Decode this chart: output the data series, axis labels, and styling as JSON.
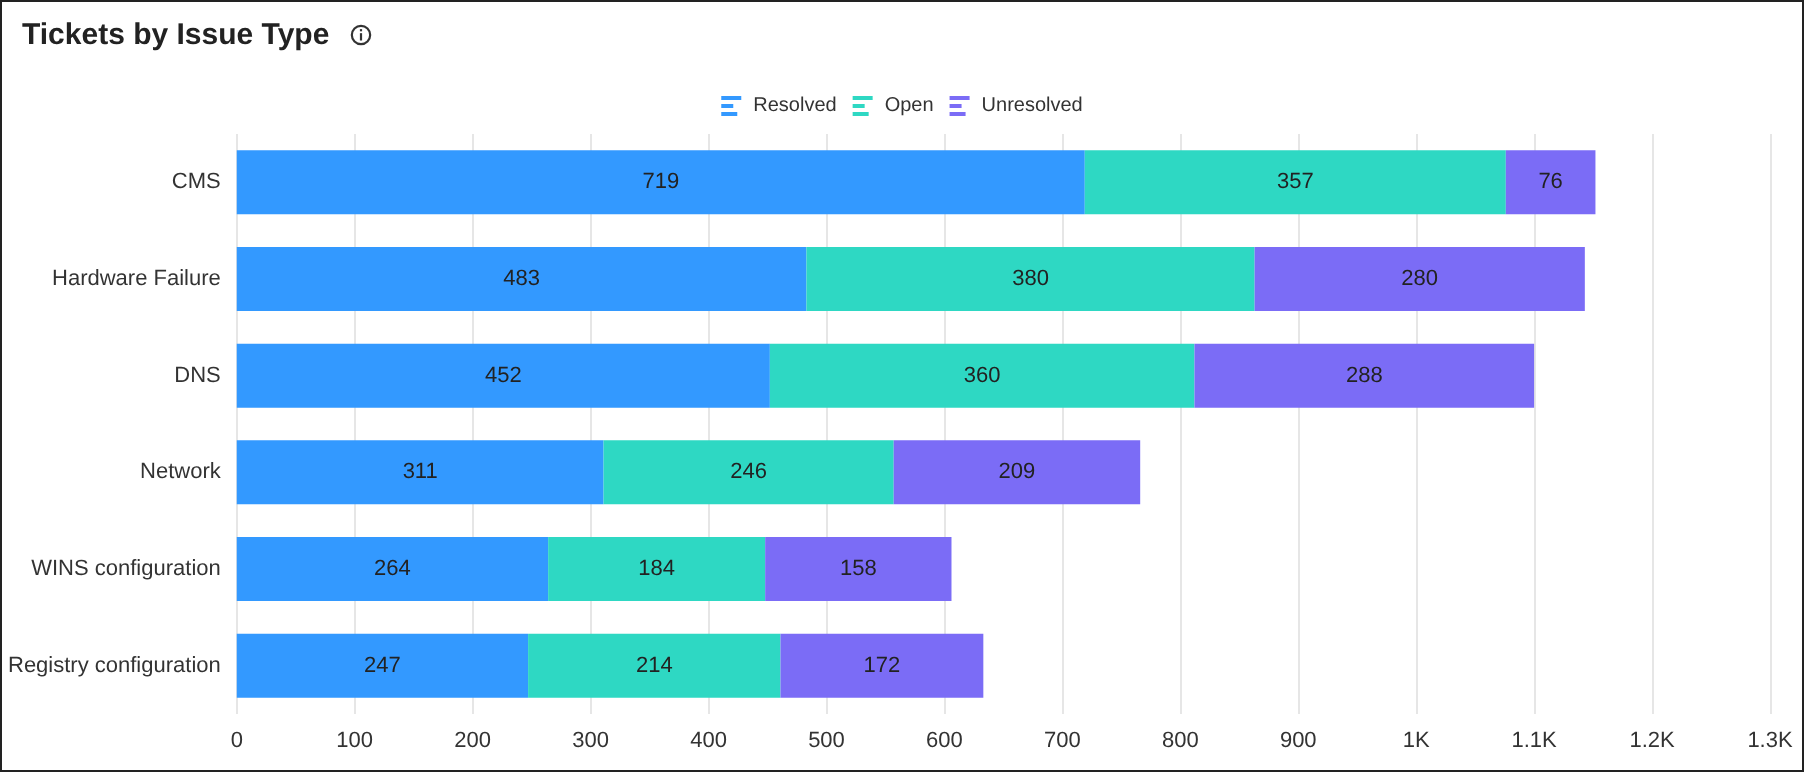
{
  "chart_data": {
    "type": "bar",
    "title": "Tickets by Issue Type",
    "orientation": "horizontal",
    "stacked": true,
    "data_labels": true,
    "grid": "x",
    "legend": "top",
    "categories": [
      "CMS",
      "Hardware Failure",
      "DNS",
      "Network",
      "WINS configuration",
      "Registry configuration"
    ],
    "series": [
      {
        "name": "Resolved",
        "color": "#3399ff",
        "values": [
          719,
          483,
          452,
          311,
          264,
          247
        ]
      },
      {
        "name": "Open",
        "color": "#2ed8c3",
        "values": [
          357,
          380,
          360,
          246,
          184,
          214
        ]
      },
      {
        "name": "Unresolved",
        "color": "#7b6cf6",
        "values": [
          76,
          280,
          288,
          209,
          158,
          172
        ]
      }
    ],
    "xlim": [
      0,
      1300
    ],
    "xticks": [
      0,
      100,
      200,
      300,
      400,
      500,
      600,
      700,
      800,
      900,
      {
        "value": 1000,
        "label": "1K"
      },
      {
        "value": 1100,
        "label": "1.1K"
      },
      {
        "value": 1200,
        "label": "1.2K"
      },
      {
        "value": 1300,
        "label": "1.3K"
      }
    ]
  }
}
